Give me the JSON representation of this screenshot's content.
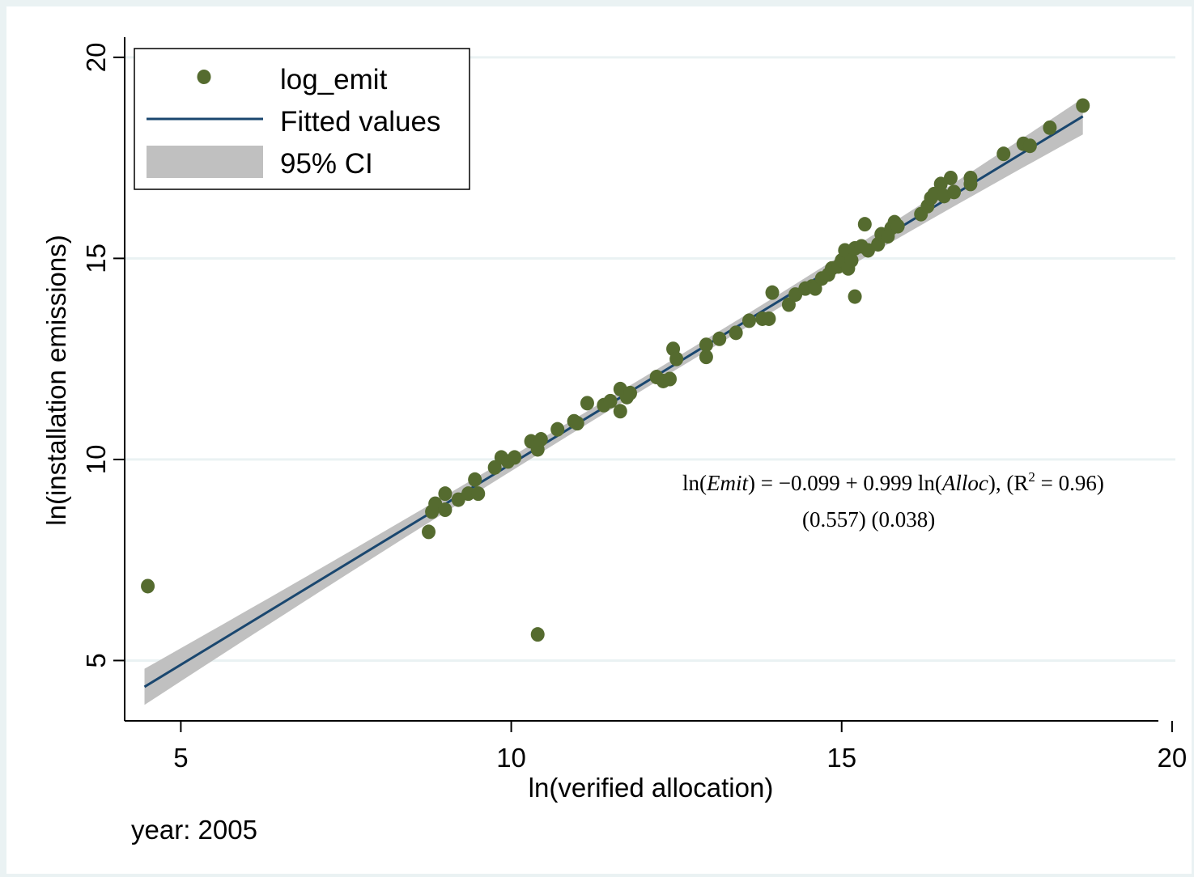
{
  "chart_data": {
    "type": "scatter",
    "xlabel": "ln(verified allocation)",
    "ylabel": "ln(installation emissions)",
    "xlim": [
      4.15,
      20.05
    ],
    "ylim": [
      3.5,
      20.5
    ],
    "x_ticks": [
      "5",
      "10",
      "15",
      "20"
    ],
    "y_ticks": [
      "5",
      "10",
      "15",
      "20"
    ],
    "grid": "horizontal",
    "legend_position": "top-left",
    "caption": "year: 2005",
    "colors": {
      "points": "#556b2f",
      "line": "#1a476f",
      "ci": "#c0c0c0"
    },
    "legend": [
      {
        "label": "log_emit",
        "kind": "marker"
      },
      {
        "label": "Fitted values",
        "kind": "line"
      },
      {
        "label": "95% CI",
        "kind": "band"
      }
    ],
    "fit": {
      "intercept": -0.099,
      "slope": 0.999,
      "x_range": [
        4.45,
        18.65
      ],
      "ci_halfwidth_ends": 0.45,
      "ci_halfwidth_center": 0.15,
      "ci_center_x": 12.5
    },
    "annotation": {
      "eq_lead": "ln(",
      "eq_emit": "Emit",
      "eq_mid": ") = −0.099  +  0.999 ln(",
      "eq_alloc": "Alloc",
      "eq_tail": "),  (R",
      "eq_sup": "2",
      "eq_end": " = 0.96)",
      "se_line": "(0.557)   (0.038)"
    },
    "series": [
      {
        "name": "log_emit",
        "points": [
          [
            4.5,
            6.85
          ],
          [
            10.4,
            5.65
          ],
          [
            8.75,
            8.2
          ],
          [
            8.8,
            8.7
          ],
          [
            8.85,
            8.9
          ],
          [
            9.0,
            8.75
          ],
          [
            9.0,
            9.15
          ],
          [
            9.2,
            9.0
          ],
          [
            9.35,
            9.15
          ],
          [
            9.45,
            9.5
          ],
          [
            9.5,
            9.15
          ],
          [
            9.75,
            9.8
          ],
          [
            9.85,
            10.05
          ],
          [
            9.95,
            9.95
          ],
          [
            10.05,
            10.05
          ],
          [
            10.3,
            10.45
          ],
          [
            10.4,
            10.25
          ],
          [
            10.45,
            10.5
          ],
          [
            10.7,
            10.75
          ],
          [
            10.95,
            10.95
          ],
          [
            11.0,
            10.9
          ],
          [
            11.15,
            11.4
          ],
          [
            11.4,
            11.35
          ],
          [
            11.5,
            11.45
          ],
          [
            11.65,
            11.2
          ],
          [
            11.65,
            11.75
          ],
          [
            11.75,
            11.55
          ],
          [
            11.8,
            11.65
          ],
          [
            12.2,
            12.05
          ],
          [
            12.3,
            11.95
          ],
          [
            12.4,
            12.0
          ],
          [
            12.45,
            12.75
          ],
          [
            12.5,
            12.5
          ],
          [
            12.95,
            12.55
          ],
          [
            12.95,
            12.85
          ],
          [
            13.15,
            13.0
          ],
          [
            13.4,
            13.15
          ],
          [
            13.6,
            13.45
          ],
          [
            13.8,
            13.5
          ],
          [
            13.9,
            13.5
          ],
          [
            13.95,
            14.15
          ],
          [
            14.2,
            13.85
          ],
          [
            14.3,
            14.1
          ],
          [
            14.45,
            14.25
          ],
          [
            14.55,
            14.3
          ],
          [
            14.6,
            14.25
          ],
          [
            14.7,
            14.5
          ],
          [
            14.8,
            14.6
          ],
          [
            14.85,
            14.75
          ],
          [
            14.95,
            14.8
          ],
          [
            15.0,
            14.95
          ],
          [
            15.05,
            15.2
          ],
          [
            15.1,
            14.75
          ],
          [
            15.15,
            14.95
          ],
          [
            15.2,
            14.05
          ],
          [
            15.2,
            15.25
          ],
          [
            15.3,
            15.3
          ],
          [
            15.35,
            15.85
          ],
          [
            15.4,
            15.2
          ],
          [
            15.55,
            15.35
          ],
          [
            15.6,
            15.6
          ],
          [
            15.7,
            15.55
          ],
          [
            15.75,
            15.75
          ],
          [
            15.8,
            15.9
          ],
          [
            15.85,
            15.8
          ],
          [
            16.2,
            16.1
          ],
          [
            16.3,
            16.3
          ],
          [
            16.35,
            16.5
          ],
          [
            16.4,
            16.6
          ],
          [
            16.5,
            16.85
          ],
          [
            16.55,
            16.55
          ],
          [
            16.65,
            17.0
          ],
          [
            16.7,
            16.65
          ],
          [
            16.95,
            16.85
          ],
          [
            16.95,
            17.0
          ],
          [
            17.45,
            17.6
          ],
          [
            17.75,
            17.85
          ],
          [
            17.85,
            17.8
          ],
          [
            18.15,
            18.25
          ],
          [
            18.65,
            18.8
          ]
        ]
      }
    ]
  }
}
